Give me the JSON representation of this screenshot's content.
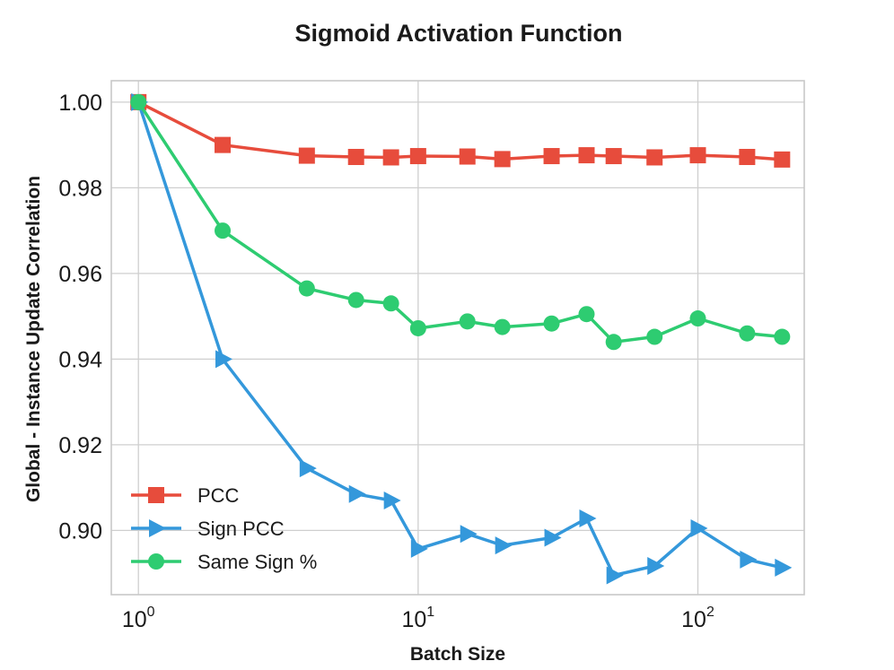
{
  "chart_data": {
    "type": "line",
    "title": "Sigmoid Activation Function",
    "xlabel": "Batch Size",
    "ylabel": "Global - Instance Update Correlation",
    "xscale": "log",
    "xlim": [
      0.8,
      240
    ],
    "ylim": [
      0.885,
      1.005
    ],
    "grid": true,
    "legend_position": "lower-left",
    "x": [
      1,
      2,
      4,
      6,
      8,
      10,
      15,
      20,
      30,
      40,
      50,
      70,
      100,
      150,
      200
    ],
    "yticks": [
      {
        "value": 0.9,
        "label": "0.90"
      },
      {
        "value": 0.92,
        "label": "0.92"
      },
      {
        "value": 0.94,
        "label": "0.94"
      },
      {
        "value": 0.96,
        "label": "0.96"
      },
      {
        "value": 0.98,
        "label": "0.98"
      },
      {
        "value": 1.0,
        "label": "1.00"
      }
    ],
    "xticks": [
      {
        "value": 1,
        "base": "10",
        "exp": "0"
      },
      {
        "value": 10,
        "base": "10",
        "exp": "1"
      },
      {
        "value": 100,
        "base": "10",
        "exp": "2"
      }
    ],
    "series": [
      {
        "name": "PCC",
        "color": "#e74c3c",
        "marker": "square",
        "values": [
          1.0,
          0.99,
          0.9875,
          0.9872,
          0.9871,
          0.9874,
          0.9873,
          0.9867,
          0.9874,
          0.9876,
          0.9874,
          0.9871,
          0.9876,
          0.9872,
          0.9866
        ]
      },
      {
        "name": "Sign PCC",
        "color": "#3498db",
        "marker": "triangle-right",
        "values": [
          1.0,
          0.94,
          0.9145,
          0.9085,
          0.907,
          0.8957,
          0.8992,
          0.8965,
          0.8983,
          0.9028,
          0.8895,
          0.8917,
          0.9005,
          0.8932,
          0.8913
        ]
      },
      {
        "name": "Same Sign %",
        "color": "#2ecc71",
        "marker": "circle",
        "values": [
          1.0,
          0.97,
          0.9565,
          0.9538,
          0.953,
          0.9472,
          0.9488,
          0.9475,
          0.9483,
          0.9505,
          0.944,
          0.9452,
          0.9495,
          0.946,
          0.9452
        ]
      }
    ]
  }
}
